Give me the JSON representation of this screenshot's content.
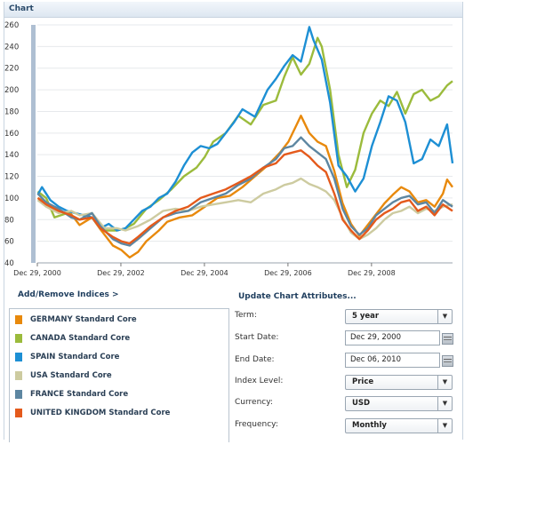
{
  "panel": {
    "title": "Chart"
  },
  "chart_data": {
    "type": "line",
    "ylim": [
      40,
      260
    ],
    "yticks": [
      40,
      60,
      80,
      100,
      120,
      140,
      160,
      180,
      200,
      220,
      240,
      260
    ],
    "xlim": [
      2000.99,
      2010.93
    ],
    "xticks": [
      {
        "label": "Dec 29, 2000",
        "x": 2000.99
      },
      {
        "label": "Dec 29, 2002",
        "x": 2002.99
      },
      {
        "label": "Dec 29, 2004",
        "x": 2004.99
      },
      {
        "label": "Dec 29, 2006",
        "x": 2006.99
      },
      {
        "label": "Dec 29, 2008",
        "x": 2008.99
      }
    ],
    "grid": true,
    "series": [
      {
        "name": "GERMANY Standard Core",
        "color": "#e8890c",
        "points": [
          [
            2001.0,
            100
          ],
          [
            2001.2,
            96
          ],
          [
            2001.5,
            88
          ],
          [
            2001.8,
            85
          ],
          [
            2002.0,
            75
          ],
          [
            2002.3,
            82
          ],
          [
            2002.5,
            71
          ],
          [
            2002.8,
            56
          ],
          [
            2003.0,
            52
          ],
          [
            2003.2,
            45
          ],
          [
            2003.4,
            50
          ],
          [
            2003.6,
            60
          ],
          [
            2003.9,
            70
          ],
          [
            2004.1,
            78
          ],
          [
            2004.4,
            82
          ],
          [
            2004.7,
            84
          ],
          [
            2005.0,
            92
          ],
          [
            2005.3,
            100
          ],
          [
            2005.6,
            102
          ],
          [
            2005.9,
            110
          ],
          [
            2006.2,
            120
          ],
          [
            2006.5,
            130
          ],
          [
            2006.8,
            142
          ],
          [
            2007.0,
            152
          ],
          [
            2007.2,
            168
          ],
          [
            2007.3,
            176
          ],
          [
            2007.5,
            160
          ],
          [
            2007.7,
            152
          ],
          [
            2007.9,
            148
          ],
          [
            2008.1,
            125
          ],
          [
            2008.3,
            95
          ],
          [
            2008.5,
            76
          ],
          [
            2008.7,
            65
          ],
          [
            2008.9,
            75
          ],
          [
            2009.1,
            85
          ],
          [
            2009.3,
            95
          ],
          [
            2009.5,
            103
          ],
          [
            2009.7,
            110
          ],
          [
            2009.9,
            106
          ],
          [
            2010.1,
            96
          ],
          [
            2010.3,
            98
          ],
          [
            2010.5,
            92
          ],
          [
            2010.7,
            104
          ],
          [
            2010.8,
            117
          ],
          [
            2010.93,
            110
          ]
        ]
      },
      {
        "name": "CANADA Standard Core",
        "color": "#9bbb3c",
        "points": [
          [
            2001.0,
            106
          ],
          [
            2001.2,
            100
          ],
          [
            2001.4,
            82
          ],
          [
            2001.7,
            86
          ],
          [
            2002.0,
            80
          ],
          [
            2002.3,
            86
          ],
          [
            2002.6,
            70
          ],
          [
            2002.9,
            70
          ],
          [
            2003.1,
            72
          ],
          [
            2003.3,
            76
          ],
          [
            2003.6,
            90
          ],
          [
            2003.9,
            98
          ],
          [
            2004.2,
            108
          ],
          [
            2004.5,
            120
          ],
          [
            2004.8,
            128
          ],
          [
            2005.0,
            138
          ],
          [
            2005.2,
            152
          ],
          [
            2005.5,
            160
          ],
          [
            2005.8,
            176
          ],
          [
            2006.1,
            168
          ],
          [
            2006.4,
            186
          ],
          [
            2006.7,
            190
          ],
          [
            2006.9,
            212
          ],
          [
            2007.1,
            230
          ],
          [
            2007.3,
            214
          ],
          [
            2007.5,
            224
          ],
          [
            2007.7,
            248
          ],
          [
            2007.8,
            240
          ],
          [
            2008.0,
            200
          ],
          [
            2008.2,
            140
          ],
          [
            2008.4,
            110
          ],
          [
            2008.6,
            126
          ],
          [
            2008.8,
            160
          ],
          [
            2009.0,
            178
          ],
          [
            2009.2,
            190
          ],
          [
            2009.4,
            185
          ],
          [
            2009.6,
            198
          ],
          [
            2009.8,
            178
          ],
          [
            2010.0,
            196
          ],
          [
            2010.2,
            200
          ],
          [
            2010.4,
            190
          ],
          [
            2010.6,
            194
          ],
          [
            2010.8,
            204
          ],
          [
            2010.93,
            208
          ]
        ]
      },
      {
        "name": "SPAIN Standard Core",
        "color": "#1d8fd4",
        "points": [
          [
            2001.0,
            103
          ],
          [
            2001.1,
            110
          ],
          [
            2001.3,
            98
          ],
          [
            2001.5,
            92
          ],
          [
            2001.7,
            88
          ],
          [
            2002.0,
            85
          ],
          [
            2002.3,
            82
          ],
          [
            2002.5,
            72
          ],
          [
            2002.7,
            76
          ],
          [
            2002.9,
            70
          ],
          [
            2003.1,
            72
          ],
          [
            2003.3,
            80
          ],
          [
            2003.5,
            88
          ],
          [
            2003.7,
            92
          ],
          [
            2003.9,
            100
          ],
          [
            2004.1,
            104
          ],
          [
            2004.3,
            115
          ],
          [
            2004.5,
            130
          ],
          [
            2004.7,
            142
          ],
          [
            2004.9,
            148
          ],
          [
            2005.1,
            146
          ],
          [
            2005.3,
            150
          ],
          [
            2005.5,
            160
          ],
          [
            2005.7,
            170
          ],
          [
            2005.9,
            182
          ],
          [
            2006.2,
            175
          ],
          [
            2006.5,
            200
          ],
          [
            2006.7,
            210
          ],
          [
            2006.9,
            222
          ],
          [
            2007.1,
            232
          ],
          [
            2007.3,
            226
          ],
          [
            2007.5,
            258
          ],
          [
            2007.6,
            246
          ],
          [
            2007.8,
            228
          ],
          [
            2008.0,
            188
          ],
          [
            2008.2,
            130
          ],
          [
            2008.4,
            120
          ],
          [
            2008.6,
            106
          ],
          [
            2008.8,
            118
          ],
          [
            2009.0,
            148
          ],
          [
            2009.2,
            170
          ],
          [
            2009.4,
            194
          ],
          [
            2009.6,
            190
          ],
          [
            2009.8,
            170
          ],
          [
            2010.0,
            132
          ],
          [
            2010.2,
            136
          ],
          [
            2010.4,
            154
          ],
          [
            2010.6,
            148
          ],
          [
            2010.8,
            168
          ],
          [
            2010.93,
            132
          ]
        ]
      },
      {
        "name": "USA Standard Core",
        "color": "#cdcba0",
        "points": [
          [
            2001.0,
            98
          ],
          [
            2001.2,
            92
          ],
          [
            2001.5,
            86
          ],
          [
            2001.8,
            88
          ],
          [
            2002.0,
            84
          ],
          [
            2002.3,
            86
          ],
          [
            2002.6,
            72
          ],
          [
            2002.9,
            72
          ],
          [
            2003.1,
            70
          ],
          [
            2003.4,
            74
          ],
          [
            2003.7,
            80
          ],
          [
            2004.0,
            88
          ],
          [
            2004.3,
            90
          ],
          [
            2004.6,
            88
          ],
          [
            2004.9,
            92
          ],
          [
            2005.2,
            94
          ],
          [
            2005.5,
            96
          ],
          [
            2005.8,
            98
          ],
          [
            2006.1,
            96
          ],
          [
            2006.4,
            104
          ],
          [
            2006.7,
            108
          ],
          [
            2006.9,
            112
          ],
          [
            2007.1,
            114
          ],
          [
            2007.3,
            118
          ],
          [
            2007.5,
            113
          ],
          [
            2007.7,
            110
          ],
          [
            2007.9,
            106
          ],
          [
            2008.1,
            98
          ],
          [
            2008.3,
            82
          ],
          [
            2008.5,
            68
          ],
          [
            2008.7,
            62
          ],
          [
            2008.9,
            66
          ],
          [
            2009.1,
            72
          ],
          [
            2009.3,
            80
          ],
          [
            2009.5,
            86
          ],
          [
            2009.7,
            88
          ],
          [
            2009.9,
            92
          ],
          [
            2010.1,
            86
          ],
          [
            2010.3,
            90
          ],
          [
            2010.5,
            88
          ],
          [
            2010.7,
            92
          ],
          [
            2010.93,
            94
          ]
        ]
      },
      {
        "name": "FRANCE Standard Core",
        "color": "#5d86a1",
        "points": [
          [
            2001.0,
            104
          ],
          [
            2001.2,
            96
          ],
          [
            2001.5,
            90
          ],
          [
            2001.8,
            82
          ],
          [
            2002.0,
            80
          ],
          [
            2002.3,
            86
          ],
          [
            2002.5,
            74
          ],
          [
            2002.8,
            62
          ],
          [
            2003.0,
            58
          ],
          [
            2003.2,
            56
          ],
          [
            2003.4,
            62
          ],
          [
            2003.7,
            72
          ],
          [
            2004.0,
            82
          ],
          [
            2004.3,
            86
          ],
          [
            2004.6,
            88
          ],
          [
            2004.9,
            96
          ],
          [
            2005.2,
            100
          ],
          [
            2005.5,
            104
          ],
          [
            2005.8,
            112
          ],
          [
            2006.1,
            118
          ],
          [
            2006.4,
            128
          ],
          [
            2006.7,
            136
          ],
          [
            2006.9,
            146
          ],
          [
            2007.1,
            148
          ],
          [
            2007.3,
            156
          ],
          [
            2007.5,
            148
          ],
          [
            2007.7,
            142
          ],
          [
            2007.9,
            136
          ],
          [
            2008.1,
            118
          ],
          [
            2008.3,
            90
          ],
          [
            2008.5,
            74
          ],
          [
            2008.7,
            66
          ],
          [
            2008.9,
            72
          ],
          [
            2009.1,
            84
          ],
          [
            2009.3,
            90
          ],
          [
            2009.5,
            96
          ],
          [
            2009.7,
            100
          ],
          [
            2009.9,
            102
          ],
          [
            2010.1,
            94
          ],
          [
            2010.3,
            96
          ],
          [
            2010.5,
            86
          ],
          [
            2010.7,
            98
          ],
          [
            2010.93,
            92
          ]
        ]
      },
      {
        "name": "UNITED KINGDOM Standard Core",
        "color": "#e45a1c",
        "points": [
          [
            2001.0,
            100
          ],
          [
            2001.2,
            94
          ],
          [
            2001.5,
            88
          ],
          [
            2001.8,
            84
          ],
          [
            2002.0,
            80
          ],
          [
            2002.3,
            82
          ],
          [
            2002.5,
            72
          ],
          [
            2002.8,
            64
          ],
          [
            2003.0,
            60
          ],
          [
            2003.2,
            58
          ],
          [
            2003.4,
            64
          ],
          [
            2003.7,
            74
          ],
          [
            2004.0,
            82
          ],
          [
            2004.3,
            88
          ],
          [
            2004.6,
            92
          ],
          [
            2004.9,
            100
          ],
          [
            2005.2,
            104
          ],
          [
            2005.5,
            108
          ],
          [
            2005.8,
            114
          ],
          [
            2006.1,
            120
          ],
          [
            2006.4,
            128
          ],
          [
            2006.7,
            132
          ],
          [
            2006.9,
            140
          ],
          [
            2007.1,
            142
          ],
          [
            2007.3,
            144
          ],
          [
            2007.5,
            138
          ],
          [
            2007.7,
            130
          ],
          [
            2007.9,
            124
          ],
          [
            2008.1,
            104
          ],
          [
            2008.3,
            80
          ],
          [
            2008.5,
            70
          ],
          [
            2008.7,
            62
          ],
          [
            2008.9,
            70
          ],
          [
            2009.1,
            80
          ],
          [
            2009.3,
            86
          ],
          [
            2009.5,
            90
          ],
          [
            2009.7,
            96
          ],
          [
            2009.9,
            98
          ],
          [
            2010.1,
            88
          ],
          [
            2010.3,
            92
          ],
          [
            2010.5,
            84
          ],
          [
            2010.7,
            94
          ],
          [
            2010.93,
            88
          ]
        ]
      }
    ]
  },
  "indices": {
    "link": "Add/Remove Indices >",
    "items": [
      {
        "label": "GERMANY Standard Core",
        "color": "#e8890c"
      },
      {
        "label": "CANADA Standard Core",
        "color": "#9bbb3c"
      },
      {
        "label": "SPAIN Standard Core",
        "color": "#1d8fd4"
      },
      {
        "label": "USA Standard Core",
        "color": "#cdcba0"
      },
      {
        "label": "FRANCE Standard Core",
        "color": "#5d86a1"
      },
      {
        "label": "UNITED KINGDOM Standard Core",
        "color": "#e45a1c"
      }
    ]
  },
  "attributes": {
    "title": "Update Chart Attributes...",
    "term": {
      "label": "Term:",
      "value": "5 year"
    },
    "start_date": {
      "label": "Start Date:",
      "value": "Dec 29, 2000"
    },
    "end_date": {
      "label": "End Date:",
      "value": "Dec 06, 2010"
    },
    "index_level": {
      "label": "Index Level:",
      "value": "Price"
    },
    "currency": {
      "label": "Currency:",
      "value": "USD"
    },
    "frequency": {
      "label": "Frequency:",
      "value": "Monthly"
    }
  }
}
